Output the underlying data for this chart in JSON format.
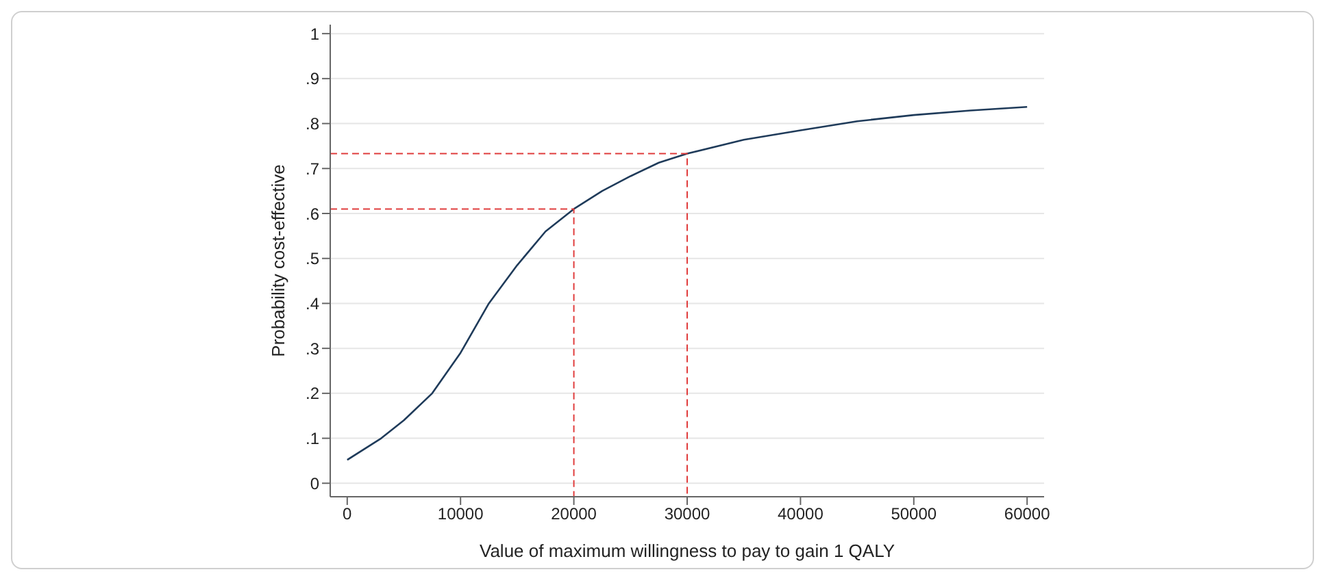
{
  "chart_data": {
    "type": "line",
    "xlabel": "Value of maximum willingness to pay to gain 1 QALY",
    "ylabel": "Probability cost-effective",
    "xlim": [
      -1500,
      61500
    ],
    "ylim": [
      -0.03,
      1.02
    ],
    "xticks": [
      0,
      10000,
      20000,
      30000,
      40000,
      50000,
      60000
    ],
    "yticks": [
      0,
      {
        "value": 0.1,
        "label": ".1"
      },
      {
        "value": 0.2,
        "label": ".2"
      },
      {
        "value": 0.3,
        "label": ".3"
      },
      {
        "value": 0.4,
        "label": ".4"
      },
      {
        "value": 0.5,
        "label": ".5"
      },
      {
        "value": 0.6,
        "label": ".6"
      },
      {
        "value": 0.7,
        "label": ".7"
      },
      {
        "value": 0.8,
        "label": ".8"
      },
      {
        "value": 0.9,
        "label": ".9"
      },
      1
    ],
    "grid": "y",
    "marker": "none",
    "series": [
      {
        "color": "#1f3b5a",
        "line_style": "solid",
        "x": [
          0,
          3000,
          5000,
          7500,
          10000,
          12500,
          15000,
          17500,
          20000,
          22500,
          25000,
          27500,
          30000,
          35000,
          40000,
          45000,
          50000,
          55000,
          60000
        ],
        "values": [
          0.052,
          0.1,
          0.14,
          0.2,
          0.29,
          0.4,
          0.485,
          0.56,
          0.61,
          0.65,
          0.683,
          0.713,
          0.733,
          0.764,
          0.785,
          0.805,
          0.819,
          0.829,
          0.837
        ]
      },
      {
        "type": "line",
        "color": "#e03c3c",
        "line_style": "dashed",
        "x": [
          -1500,
          20000,
          20000
        ],
        "values": [
          0.61,
          0.61,
          -0.03
        ]
      },
      {
        "type": "line",
        "color": "#e03c3c",
        "line_style": "dashed",
        "x": [
          -1500,
          30000,
          30000
        ],
        "values": [
          0.733,
          0.733,
          -0.03
        ]
      }
    ]
  }
}
